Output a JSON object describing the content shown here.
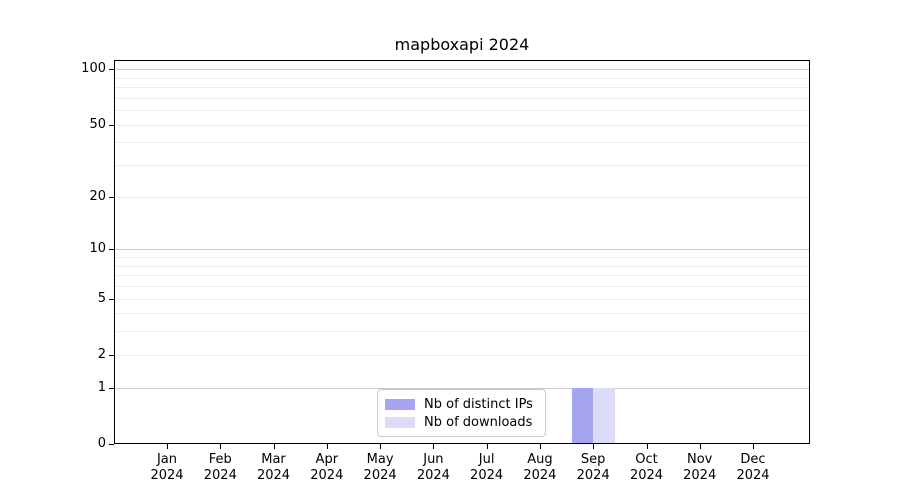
{
  "chart_data": {
    "type": "bar",
    "title": "mapboxapi 2024",
    "categories": [
      "Jan",
      "Feb",
      "Mar",
      "Apr",
      "May",
      "Jun",
      "Jul",
      "Aug",
      "Sep",
      "Oct",
      "Nov",
      "Dec"
    ],
    "category_year": "2024",
    "series": [
      {
        "name": "Nb of distinct IPs",
        "color": "#a5a5f0",
        "values": [
          0,
          0,
          0,
          0,
          0,
          0,
          0,
          0,
          1,
          0,
          0,
          0
        ]
      },
      {
        "name": "Nb of downloads",
        "color": "#dcdcf8",
        "values": [
          0,
          0,
          0,
          0,
          0,
          0,
          0,
          0,
          1,
          0,
          0,
          0
        ]
      }
    ],
    "xlabel": "",
    "ylabel": "",
    "y_axis": {
      "scale": "log1p",
      "tick_values": [
        0,
        1,
        2,
        5,
        10,
        20,
        50,
        100
      ],
      "tick_labels": [
        "0",
        "1",
        "2",
        "5",
        "10",
        "20",
        "50",
        "100"
      ],
      "max": 112,
      "major_gridlines": [
        1,
        10,
        100
      ],
      "minor_gridlines": [
        2,
        3,
        4,
        5,
        6,
        7,
        8,
        9,
        20,
        30,
        40,
        50,
        60,
        70,
        80,
        90
      ]
    },
    "legend": {
      "position": "bottom-center",
      "entries": [
        "Nb of distinct IPs",
        "Nb of downloads"
      ]
    },
    "colors": {
      "major_grid": "#c9c9c9",
      "minor_grid": "#ececec",
      "spine": "#000000",
      "background": "#ffffff"
    },
    "grid": true
  }
}
